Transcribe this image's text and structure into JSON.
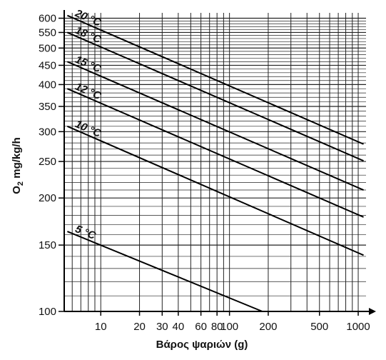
{
  "chart_data": {
    "type": "line",
    "xlabel": "Βάρος ψαριών (g)",
    "ylabel_main": "O",
    "ylabel_sub": "2",
    "ylabel_rest": " mg/kg/h",
    "xscale": "log",
    "yscale": "log",
    "xlim": [
      5.2,
      1150
    ],
    "ylim": [
      100,
      620
    ],
    "grid": true,
    "x_ticks": [
      10,
      20,
      30,
      40,
      60,
      80,
      100,
      200,
      500,
      1000
    ],
    "x_tick_labels": [
      "10",
      "20",
      "30",
      "40",
      "60",
      "80",
      "100",
      "200",
      "500",
      "1000"
    ],
    "y_ticks": [
      100,
      150,
      200,
      250,
      300,
      350,
      400,
      450,
      500,
      550,
      600
    ],
    "y_tick_labels": [
      "100",
      "150",
      "200",
      "250",
      "300",
      "350",
      "400",
      "450",
      "500",
      "550",
      "600"
    ],
    "series": [
      {
        "name": "20 °C",
        "x": [
          5.5,
          1100
        ],
        "y": [
          610,
          278
        ]
      },
      {
        "name": "18 °C",
        "x": [
          5.5,
          1100
        ],
        "y": [
          550,
          251
        ]
      },
      {
        "name": "15 °C",
        "x": [
          5.5,
          1100
        ],
        "y": [
          460,
          210
        ]
      },
      {
        "name": "12 °C",
        "x": [
          5.5,
          1100
        ],
        "y": [
          390,
          178
        ]
      },
      {
        "name": "10 °C",
        "x": [
          5.5,
          1100
        ],
        "y": [
          310,
          141
        ]
      },
      {
        "name": "5 °C",
        "x": [
          5.5,
          180
        ],
        "y": [
          163,
          100
        ]
      }
    ]
  }
}
